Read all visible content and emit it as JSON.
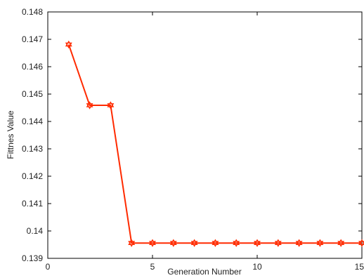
{
  "chart_data": {
    "type": "line",
    "title": "",
    "xlabel": "Generation Number",
    "ylabel": "Fittnes Value",
    "xlim": [
      0,
      15
    ],
    "ylim": [
      0.139,
      0.148
    ],
    "xticks": [
      0,
      5,
      10,
      15
    ],
    "xtick_labels": [
      "0",
      "5",
      "10",
      "15"
    ],
    "yticks": [
      0.139,
      0.14,
      0.141,
      0.142,
      0.143,
      0.144,
      0.145,
      0.146,
      0.147,
      0.148
    ],
    "ytick_labels": [
      "0.139",
      "0.14",
      "0.141",
      "0.142",
      "0.143",
      "0.144",
      "0.145",
      "0.146",
      "0.147",
      "0.148"
    ],
    "grid": false,
    "legend": null,
    "series": [
      {
        "color": "#ff2a00",
        "marker": "hexagram",
        "x": [
          1,
          2,
          3,
          4,
          5,
          6,
          7,
          8,
          9,
          10,
          11,
          12,
          13,
          14,
          15
        ],
        "y": [
          0.14681,
          0.14459,
          0.14459,
          0.13956,
          0.13956,
          0.13956,
          0.13956,
          0.13956,
          0.13956,
          0.13956,
          0.13956,
          0.13956,
          0.13956,
          0.13956,
          0.13956
        ]
      }
    ]
  }
}
